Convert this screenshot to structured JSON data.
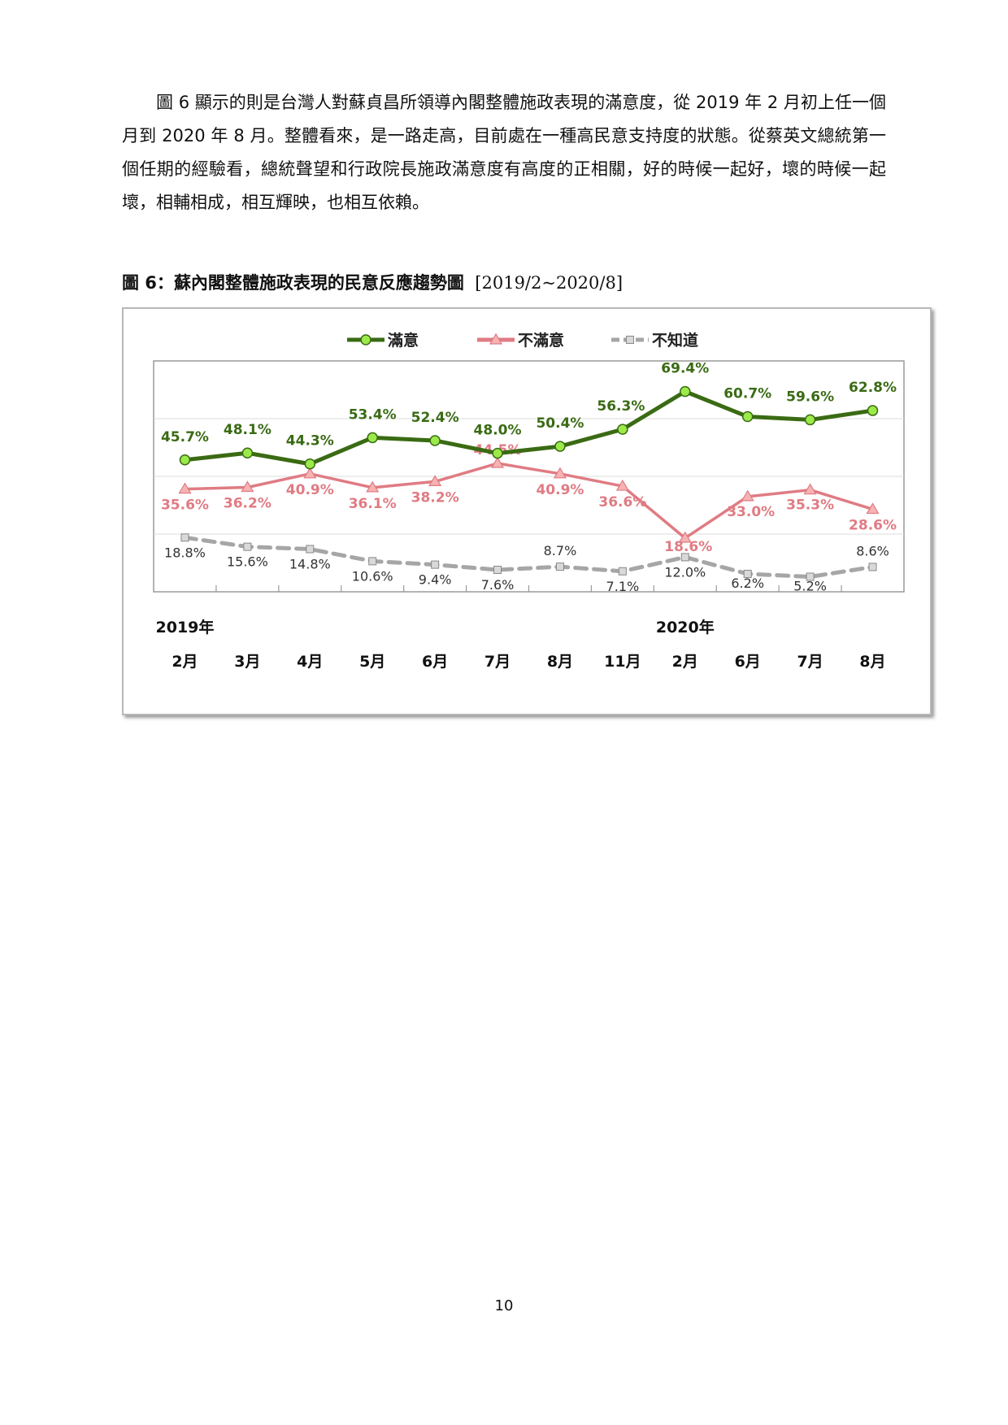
{
  "paragraph": "圖 6 顯示的則是台灣人對蘇貞昌所領導內閣整體施政表現的滿意度，從 2019 年 2 月初上任一個月到 2020 年 8 月。整體看來，是一路走高，目前處在一種高民意支持度的狀態。從蔡英文總統第一個任期的經驗看，總統聲望和行政院長施政滿意度有高度的正相關，好的時候一起好，壞的時候一起壞，相輔相成，相互輝映，也相互依賴。",
  "figure": {
    "label": "圖 6：",
    "title": "蘇內閣整體施政表現的民意反應趨勢圖",
    "range": "[2019/2~2020/8]"
  },
  "page_number": "10",
  "chart_data": {
    "type": "line",
    "categories": [
      "2月",
      "3月",
      "4月",
      "5月",
      "6月",
      "7月",
      "8月",
      "11月",
      "2月",
      "6月",
      "7月",
      "8月"
    ],
    "year_labels": [
      {
        "text": "2019年",
        "at_index": 0
      },
      {
        "text": "2020年",
        "at_index": 8
      }
    ],
    "ylim": [
      0,
      80
    ],
    "grid": true,
    "legend_position": "top",
    "series": [
      {
        "name": "滿意",
        "color": "#3a6b14",
        "marker_fill": "#9bea4a",
        "marker": "circle",
        "dashed": false,
        "values": [
          45.7,
          48.1,
          44.3,
          53.4,
          52.4,
          48.0,
          50.4,
          56.3,
          69.4,
          60.7,
          59.6,
          62.8
        ],
        "labels": [
          "45.7%",
          "48.1%",
          "44.3%",
          "53.4%",
          "52.4%",
          "48.0%",
          "50.4%",
          "56.3%",
          "69.4%",
          "60.7%",
          "59.6%",
          "62.8%"
        ]
      },
      {
        "name": "不滿意",
        "color": "#e07b83",
        "marker_fill": "#f6b3b3",
        "marker": "triangle",
        "dashed": false,
        "values": [
          35.6,
          36.2,
          40.9,
          36.1,
          38.2,
          44.5,
          40.9,
          36.6,
          18.6,
          33.0,
          35.3,
          28.6
        ],
        "labels": [
          "35.6%",
          "36.2%",
          "40.9%",
          "36.1%",
          "38.2%",
          "44.5%",
          "40.9%",
          "36.6%",
          "18.6%",
          "33.0%",
          "35.3%",
          "28.6%"
        ]
      },
      {
        "name": "不知道",
        "color": "#a6a6a6",
        "marker_fill": "#d9d9d9",
        "marker": "square",
        "dashed": true,
        "values": [
          18.8,
          15.6,
          14.8,
          10.6,
          9.4,
          7.6,
          8.7,
          7.1,
          12.0,
          6.2,
          5.2,
          8.6
        ],
        "labels": [
          "18.8%",
          "15.6%",
          "14.8%",
          "10.6%",
          "9.4%",
          "7.6%",
          "8.7%",
          "7.1%",
          "12.0%",
          "6.2%",
          "5.2%",
          "8.6%"
        ]
      }
    ]
  }
}
